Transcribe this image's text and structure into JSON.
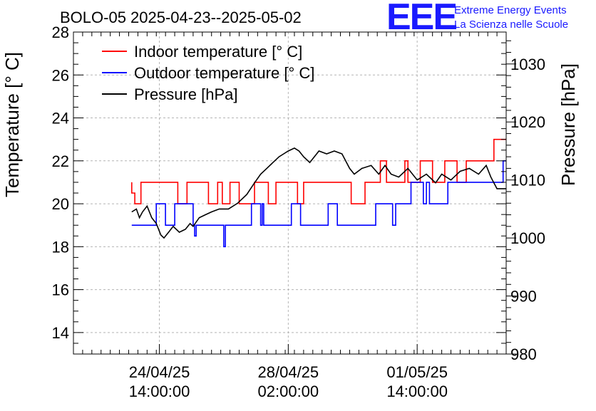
{
  "chart_data": {
    "type": "line",
    "title": "BOLO-05 2025-04-23--2025-05-02",
    "ylabel": "Temperature [° C]",
    "y2label": "Pressure [hPa]",
    "ylim": [
      13,
      28
    ],
    "y2lim": [
      980,
      1035.5
    ],
    "yticks": [
      "14",
      "16",
      "18",
      "20",
      "22",
      "24",
      "26",
      "28"
    ],
    "y2ticks": [
      "980",
      "990",
      "1000",
      "1010",
      "1020",
      "1030"
    ],
    "xticks": [
      {
        "date": "24/04/25",
        "time": "14:00:00",
        "hours": 38
      },
      {
        "date": "28/04/25",
        "time": "02:00:00",
        "hours": 122
      },
      {
        "date": "01/05/25",
        "time": "14:00:00",
        "hours": 206
      }
    ],
    "x_unit": "hours since 2025-04-23 00:00",
    "xlim": [
      -18,
      264
    ],
    "grid": true,
    "legend_position": "top-left",
    "series": [
      {
        "name": "Indoor temperature [° C]",
        "color": "#ff0000",
        "axis": "left",
        "points": [
          [
            20,
            21
          ],
          [
            20,
            20.5
          ],
          [
            22,
            20.5
          ],
          [
            22,
            20
          ],
          [
            26,
            20
          ],
          [
            26,
            21
          ],
          [
            50,
            21
          ],
          [
            50,
            20
          ],
          [
            56,
            20
          ],
          [
            56,
            21
          ],
          [
            70,
            21
          ],
          [
            70,
            20
          ],
          [
            76,
            20
          ],
          [
            76,
            21
          ],
          [
            79,
            21
          ],
          [
            79,
            20
          ],
          [
            84,
            20
          ],
          [
            84,
            21
          ],
          [
            90,
            21
          ],
          [
            90,
            20
          ],
          [
            100,
            20
          ],
          [
            100,
            21
          ],
          [
            109,
            21
          ],
          [
            109,
            20
          ],
          [
            114,
            20
          ],
          [
            114,
            21
          ],
          [
            128,
            21
          ],
          [
            128,
            20
          ],
          [
            132,
            20
          ],
          [
            132,
            21
          ],
          [
            163,
            21
          ],
          [
            163,
            20
          ],
          [
            172,
            20
          ],
          [
            172,
            21
          ],
          [
            182,
            21
          ],
          [
            182,
            22
          ],
          [
            186,
            22
          ],
          [
            186,
            21
          ],
          [
            198,
            21
          ],
          [
            198,
            22
          ],
          [
            200,
            22
          ],
          [
            200,
            21
          ],
          [
            208,
            21
          ],
          [
            208,
            22
          ],
          [
            216,
            22
          ],
          [
            216,
            21
          ],
          [
            224,
            21
          ],
          [
            224,
            22
          ],
          [
            232,
            22
          ],
          [
            232,
            21
          ],
          [
            238,
            21
          ],
          [
            238,
            22
          ],
          [
            256,
            22
          ],
          [
            256,
            23
          ],
          [
            264,
            23
          ]
        ]
      },
      {
        "name": "Outdoor temperature [° C]",
        "color": "#0000ff",
        "axis": "left",
        "points": [
          [
            20,
            19
          ],
          [
            36,
            19
          ],
          [
            36,
            20
          ],
          [
            42,
            20
          ],
          [
            42,
            19
          ],
          [
            48,
            19
          ],
          [
            48,
            20
          ],
          [
            60,
            20
          ],
          [
            60,
            19
          ],
          [
            61,
            19
          ],
          [
            61,
            18.5
          ],
          [
            62,
            18.5
          ],
          [
            62,
            19
          ],
          [
            80,
            19
          ],
          [
            80,
            18
          ],
          [
            81,
            18
          ],
          [
            81,
            19
          ],
          [
            98,
            19
          ],
          [
            98,
            20
          ],
          [
            104,
            20
          ],
          [
            104,
            19
          ],
          [
            105,
            19
          ],
          [
            105,
            20
          ],
          [
            106,
            20
          ],
          [
            106,
            19
          ],
          [
            124,
            19
          ],
          [
            124,
            20
          ],
          [
            130,
            20
          ],
          [
            130,
            19
          ],
          [
            148,
            19
          ],
          [
            148,
            20
          ],
          [
            154,
            20
          ],
          [
            154,
            19
          ],
          [
            179,
            19
          ],
          [
            179,
            20
          ],
          [
            190,
            20
          ],
          [
            190,
            19
          ],
          [
            192,
            19
          ],
          [
            192,
            20
          ],
          [
            202,
            20
          ],
          [
            202,
            21
          ],
          [
            210,
            21
          ],
          [
            210,
            20
          ],
          [
            212,
            20
          ],
          [
            212,
            21
          ],
          [
            214,
            21
          ],
          [
            214,
            20
          ],
          [
            226,
            20
          ],
          [
            226,
            21
          ],
          [
            262,
            21
          ],
          [
            262,
            22
          ],
          [
            264,
            22
          ]
        ]
      },
      {
        "name": "Pressure [hPa]",
        "color": "#000000",
        "axis": "right",
        "points": [
          [
            20,
            1004.5
          ],
          [
            23,
            1005
          ],
          [
            25,
            1003.5
          ],
          [
            27,
            1004.5
          ],
          [
            30,
            1005.5
          ],
          [
            33,
            1003.5
          ],
          [
            36,
            1002.5
          ],
          [
            39,
            1000.5
          ],
          [
            41,
            1000
          ],
          [
            44,
            1001
          ],
          [
            47,
            1002
          ],
          [
            51,
            1001
          ],
          [
            55,
            1001.5
          ],
          [
            58,
            1002.5
          ],
          [
            60,
            1002
          ],
          [
            64,
            1003.5
          ],
          [
            68,
            1004
          ],
          [
            72,
            1004.5
          ],
          [
            77,
            1005
          ],
          [
            83,
            1005
          ],
          [
            89,
            1006
          ],
          [
            95,
            1007.5
          ],
          [
            100,
            1009.5
          ],
          [
            104,
            1011
          ],
          [
            108,
            1012
          ],
          [
            112,
            1013
          ],
          [
            116,
            1014
          ],
          [
            119,
            1014.5
          ],
          [
            122,
            1015
          ],
          [
            126,
            1015.5
          ],
          [
            129,
            1015
          ],
          [
            132,
            1014
          ],
          [
            136,
            1013
          ],
          [
            139,
            1014
          ],
          [
            142,
            1015
          ],
          [
            147,
            1014.5
          ],
          [
            152,
            1015
          ],
          [
            157,
            1014.5
          ],
          [
            162,
            1012
          ],
          [
            165,
            1011
          ],
          [
            170,
            1012
          ],
          [
            176,
            1012.5
          ],
          [
            181,
            1011
          ],
          [
            185,
            1012.5
          ],
          [
            189,
            1011
          ],
          [
            194,
            1010.5
          ],
          [
            200,
            1012
          ],
          [
            206,
            1010
          ],
          [
            212,
            1011
          ],
          [
            218,
            1009.5
          ],
          [
            222,
            1011
          ],
          [
            228,
            1010
          ],
          [
            234,
            1011.5
          ],
          [
            240,
            1012
          ],
          [
            246,
            1011
          ],
          [
            251,
            1012.5
          ],
          [
            254,
            1010.5
          ],
          [
            258,
            1008.5
          ],
          [
            264,
            1008.5
          ]
        ]
      }
    ]
  },
  "logo": {
    "letters": "EEE",
    "line1": "Extreme Energy Events",
    "line2": "La Scienza nelle Scuole"
  }
}
